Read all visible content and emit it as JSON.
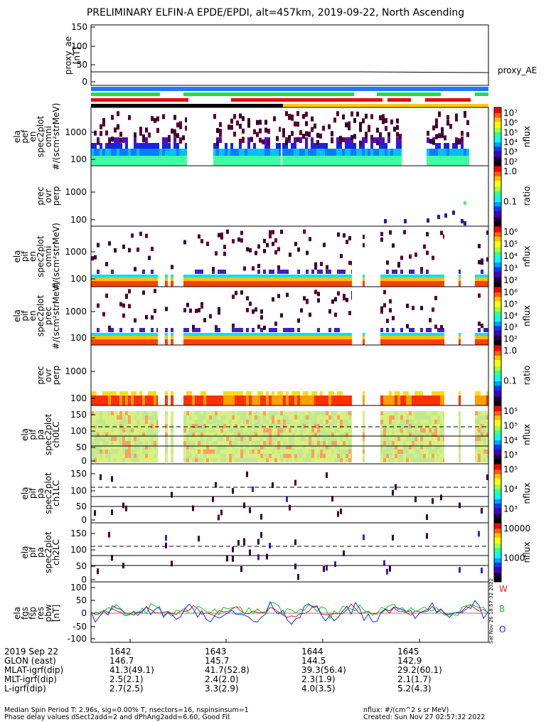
{
  "title": "PRELIMINARY ELFIN-A EPDE/EPDI, alt=457km, 2019-09-22, North Ascending",
  "panels": {
    "ae": {
      "ylabel": [
        "proxy_ae",
        "[nT]"
      ],
      "ticks": [
        "150",
        "100",
        "50",
        "0"
      ],
      "legend": "proxy_AE"
    },
    "p1": {
      "ylabel": [
        "ela",
        "pef",
        "en",
        "spec2plot",
        "omni",
        "#/(scm²strMeV)"
      ],
      "ticks": [
        "1000",
        "100"
      ],
      "cb_label": "nflux",
      "cb_ticks": [
        "10⁷",
        "10⁶",
        "10⁵",
        "10⁴",
        "10³",
        "10²"
      ]
    },
    "p2": {
      "ylabel": [
        "prec",
        "ovr",
        "perp"
      ],
      "ticks": [
        "1000",
        "100"
      ],
      "cb_label": "ratio",
      "cb_ticks": [
        "1.0",
        "0.1"
      ]
    },
    "p3": {
      "ylabel": [
        "ela",
        "pif",
        "en",
        "spec2plot",
        "omni",
        "#/(scm²strMeV)"
      ],
      "ticks": [
        "1000",
        "100"
      ],
      "cb_label": "nflux",
      "cb_ticks": [
        "10⁶",
        "10⁵",
        "10⁴",
        "10³",
        "10²"
      ]
    },
    "p4": {
      "ylabel": [
        "ela",
        "pif",
        "en",
        "spec2plot",
        "prec",
        "#/(scm²strMeV)"
      ],
      "ticks": [
        "1000",
        "100"
      ],
      "cb_label": "nflux",
      "cb_ticks": [
        "10⁶",
        "10⁵",
        "10⁴",
        "10³",
        "10²"
      ]
    },
    "p5": {
      "ylabel": [
        "prec",
        "ovr",
        "perp"
      ],
      "ticks": [
        "1000",
        "100"
      ],
      "cb_label": "ratio",
      "cb_ticks": [
        "1.0",
        "0.1"
      ]
    },
    "p6": {
      "ylabel": [
        "elа",
        "pif",
        "pa",
        "spec2plot",
        "ch0LC"
      ],
      "ticks": [
        "150",
        "100",
        "50",
        "0"
      ],
      "cb_label": "nflux",
      "cb_ticks": [
        "10⁵",
        "10⁵",
        "10⁴",
        "10³"
      ]
    },
    "p7": {
      "ylabel": [
        "ela",
        "pif",
        "pa",
        "spec2plot",
        "ch1LC"
      ],
      "ticks": [
        "150",
        "100",
        "50",
        "0"
      ],
      "cb_label": "nflux",
      "cb_ticks": [
        "10⁵",
        "10⁴",
        "10³"
      ]
    },
    "p8": {
      "ylabel": [
        "ela",
        "pif",
        "pa",
        "spec2plot",
        "ch2LC"
      ],
      "ticks": [
        "150",
        "100",
        "50",
        "0"
      ],
      "cb_label": "nflux",
      "cb_ticks": [
        "10000",
        "1000"
      ]
    },
    "p9": {
      "ylabel": [
        "ela",
        "fgs",
        "fsp",
        "res",
        "pbw",
        "[nT]"
      ],
      "ticks": [
        "100",
        "50",
        "0",
        "-50",
        "-100"
      ],
      "legend": [
        "W",
        "B",
        "O"
      ]
    }
  },
  "side_note": "Sat Nov 26 18:57:32 2022",
  "footer": {
    "labels": [
      "2019 Sep 22",
      "GLON (east)",
      "MLAT-igrf(dip)",
      "MLT-igrf(dip)",
      "L-igrf(dip)"
    ],
    "columns": [
      [
        "1642",
        "146.7",
        "41.3(49.1)",
        "2.5(2.1)",
        "2.7(2.5)"
      ],
      [
        "1643",
        "145.7",
        "41.7(52.8)",
        "2.4(2.0)",
        "3.3(2.9)"
      ],
      [
        "1644",
        "144.5",
        "39.3(56.4)",
        "2.3(1.9)",
        "4.0(3.5)"
      ],
      [
        "1645",
        "142.9",
        "29.2(60.1)",
        "2.1(1.7)",
        "5.2(4.3)"
      ]
    ],
    "note1": "Median Spin Period T: 2.96s, sig=0.00% T, nsectors=16, nspinsinsum=1",
    "note2": "Phase delay values dSect2add=2 and dPhAng2add=6.60, Good Fit",
    "units": "nflux: #/(cm^2 s sr MeV)",
    "created": "Created: Sun Nov 27 02:57:32 2022"
  },
  "colors": {
    "bar_blue": "#1f78ff",
    "bar_green": "#22dd44",
    "bar_red": "#e01010",
    "bar_yellow": "#ffcc00",
    "w_line": "#e02020",
    "b_line": "#20c020",
    "o_line": "#1030e0"
  },
  "chart_data": {
    "type": "heatmap",
    "x_ticks": [
      "1642",
      "1643",
      "1644",
      "1645"
    ],
    "panels": [
      {
        "name": "proxy_ae",
        "type": "line",
        "ylim": [
          0,
          150
        ],
        "approx_value": 30
      },
      {
        "name": "ela pef en spec2plot omni",
        "ylim": [
          50,
          5000
        ],
        "ylog": true,
        "zlabel": "nflux",
        "zlim": [
          "10²",
          "10⁷"
        ]
      },
      {
        "name": "prec ovr perp",
        "ylim": [
          50,
          5000
        ],
        "ylog": true,
        "zlabel": "ratio",
        "zlim": [
          0.01,
          1.0
        ]
      },
      {
        "name": "ela pif en spec2plot omni",
        "ylim": [
          50,
          5000
        ],
        "ylog": true,
        "zlabel": "nflux"
      },
      {
        "name": "ela pif en spec2plot prec",
        "ylim": [
          50,
          5000
        ],
        "ylog": true,
        "zlabel": "nflux"
      },
      {
        "name": "prec ovr perp",
        "ylim": [
          50,
          5000
        ],
        "ylog": true,
        "zlabel": "ratio"
      },
      {
        "name": "ela pif pa spec2plot ch0LC",
        "ylim": [
          0,
          180
        ],
        "zlabel": "nflux"
      },
      {
        "name": "ela pif pa spec2plot ch1LC",
        "ylim": [
          0,
          180
        ],
        "zlabel": "nflux"
      },
      {
        "name": "ela pif pa spec2plot ch2LC",
        "ylim": [
          0,
          180
        ],
        "zlabel": "nflux"
      },
      {
        "name": "ela fgs fsp res pbw",
        "type": "line",
        "ylim": [
          -100,
          100
        ],
        "series": [
          "W",
          "B",
          "O"
        ]
      }
    ]
  }
}
